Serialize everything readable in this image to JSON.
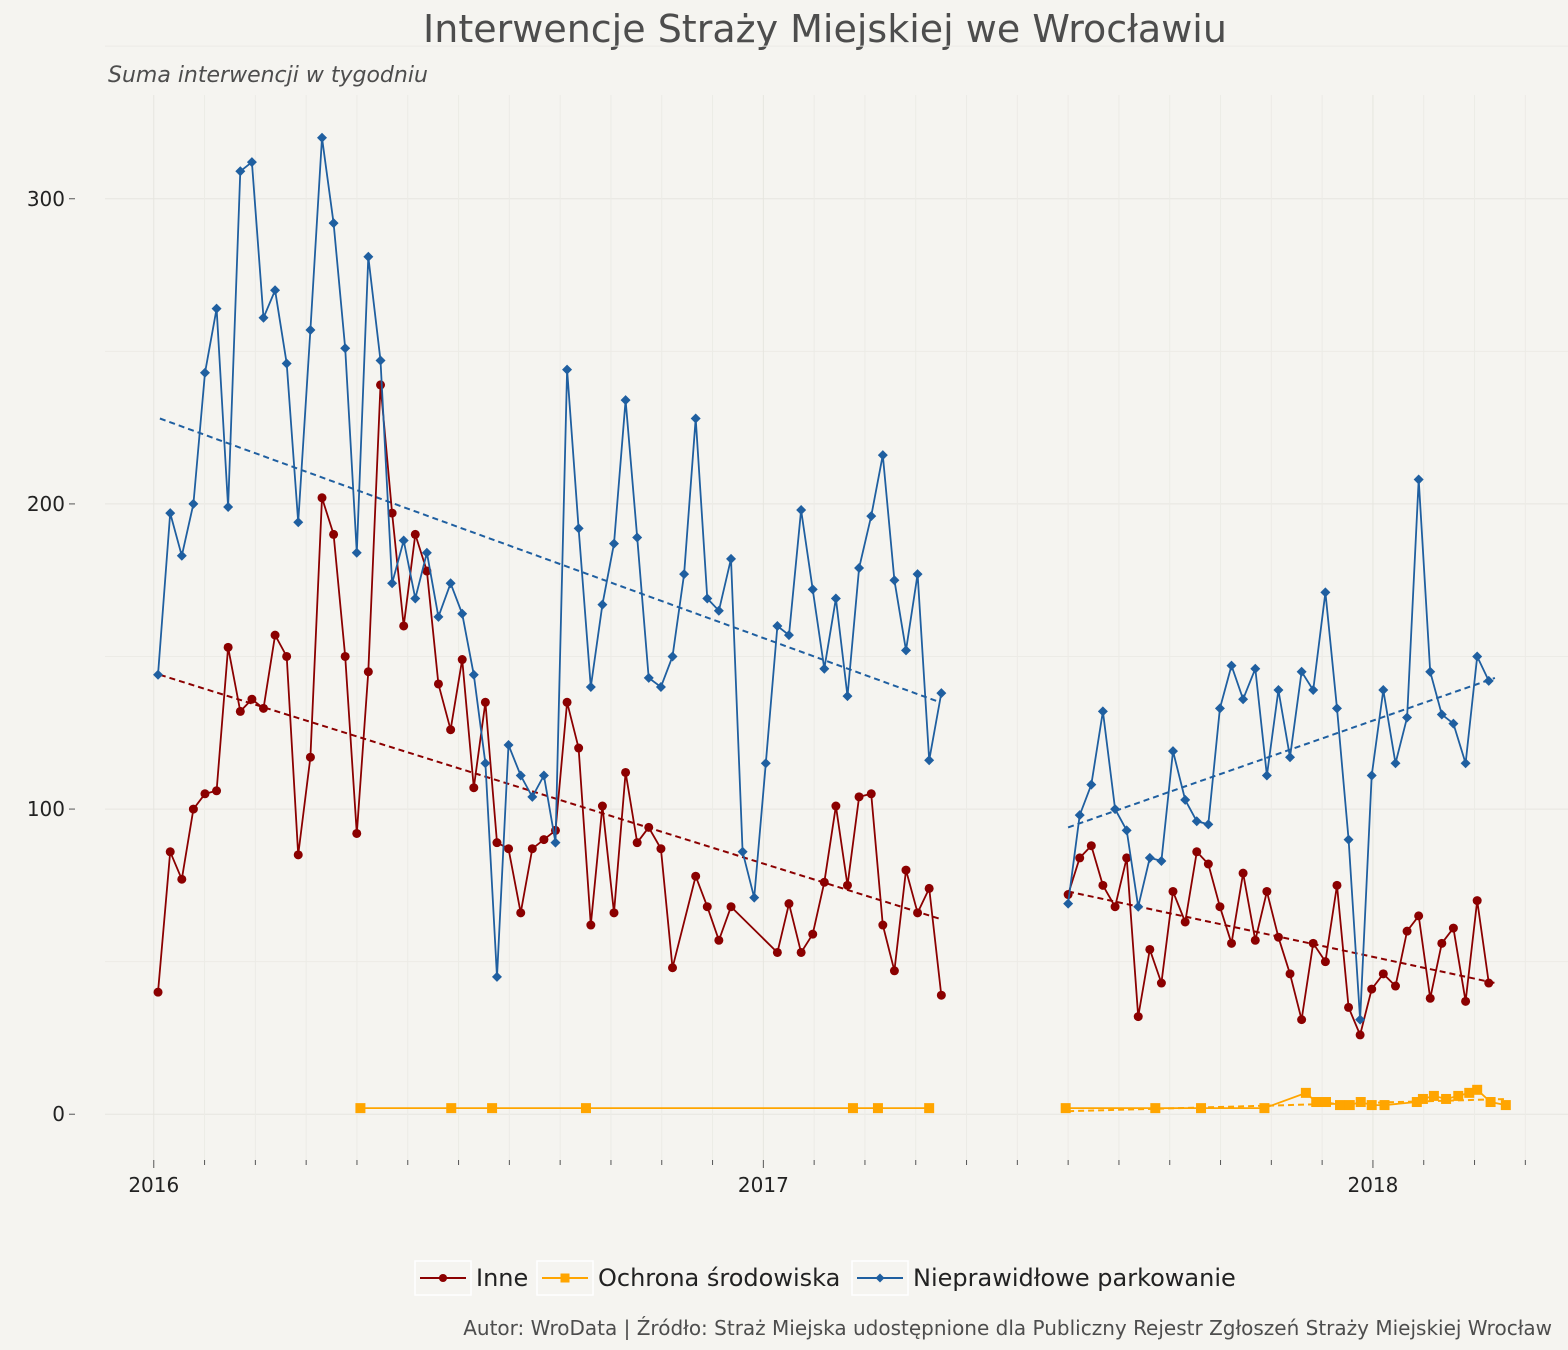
{
  "chart_data": {
    "type": "line",
    "title": "Interwencje Straży Miejskiej we Wrocławiu",
    "subtitle": "Suma interwencji w tygodniu",
    "caption": "Autor: WroData | Źródło: Straż Miejska udostępnione dla Publiczny Rejestr Zgłoszeń Straży Miejskiej Wrocław",
    "xlabel": "",
    "ylabel": "",
    "x_ticks": [
      2016,
      2017,
      2018
    ],
    "y_ticks": [
      0,
      100,
      200,
      300
    ],
    "xlim": [
      2015.92,
      2018.32
    ],
    "ylim": [
      -15,
      334
    ],
    "grid": true,
    "legend_position": "bottom",
    "series": [
      {
        "name": "Inne",
        "color": "#8b0000",
        "marker": "circle",
        "trend": [
          [
            2016.01,
            144
          ],
          [
            2017.29,
            64
          ],
          [
            2017.5,
            73
          ],
          [
            2018.2,
            43
          ]
        ],
        "segments": [
          [
            [
              2016.007,
              40
            ],
            [
              2016.027,
              86
            ],
            [
              2016.046,
              77
            ],
            [
              2016.065,
              100
            ],
            [
              2016.084,
              105
            ],
            [
              2016.103,
              106
            ],
            [
              2016.122,
              153
            ],
            [
              2016.142,
              132
            ],
            [
              2016.161,
              136
            ],
            [
              2016.18,
              133
            ],
            [
              2016.199,
              157
            ],
            [
              2016.218,
              150
            ],
            [
              2016.237,
              85
            ],
            [
              2016.257,
              117
            ],
            [
              2016.276,
              202
            ],
            [
              2016.295,
              190
            ],
            [
              2016.314,
              150
            ],
            [
              2016.333,
              92
            ],
            [
              2016.352,
              145
            ],
            [
              2016.372,
              239
            ],
            [
              2016.391,
              197
            ],
            [
              2016.41,
              160
            ],
            [
              2016.429,
              190
            ],
            [
              2016.448,
              178
            ],
            [
              2016.467,
              141
            ],
            [
              2016.487,
              126
            ],
            [
              2016.506,
              149
            ],
            [
              2016.525,
              107
            ],
            [
              2016.544,
              135
            ],
            [
              2016.563,
              89
            ],
            [
              2016.582,
              87
            ],
            [
              2016.602,
              66
            ],
            [
              2016.621,
              87
            ],
            [
              2016.64,
              90
            ],
            [
              2016.659,
              93
            ],
            [
              2016.678,
              135
            ],
            [
              2016.697,
              120
            ],
            [
              2016.717,
              62
            ],
            [
              2016.736,
              101
            ],
            [
              2016.755,
              66
            ],
            [
              2016.774,
              112
            ],
            [
              2016.793,
              89
            ],
            [
              2016.812,
              94
            ],
            [
              2016.832,
              87
            ],
            [
              2016.851,
              48
            ],
            [
              2016.889,
              78
            ],
            [
              2016.908,
              68
            ],
            [
              2016.927,
              57
            ],
            [
              2016.947,
              68
            ],
            [
              2017.023,
              53
            ],
            [
              2017.042,
              69
            ],
            [
              2017.062,
              53
            ],
            [
              2017.081,
              59
            ],
            [
              2017.1,
              76
            ],
            [
              2017.119,
              101
            ],
            [
              2017.138,
              75
            ],
            [
              2017.157,
              104
            ],
            [
              2017.177,
              105
            ],
            [
              2017.196,
              62
            ],
            [
              2017.215,
              47
            ],
            [
              2017.234,
              80
            ],
            [
              2017.253,
              66
            ],
            [
              2017.272,
              74
            ],
            [
              2017.292,
              39
            ]
          ],
          [
            [
              2017.5,
              72
            ],
            [
              2017.519,
              84
            ],
            [
              2017.538,
              88
            ],
            [
              2017.557,
              75
            ],
            [
              2017.577,
              68
            ],
            [
              2017.596,
              84
            ],
            [
              2017.615,
              32
            ],
            [
              2017.634,
              54
            ],
            [
              2017.653,
              43
            ],
            [
              2017.672,
              73
            ],
            [
              2017.692,
              63
            ],
            [
              2017.711,
              86
            ],
            [
              2017.73,
              82
            ],
            [
              2017.749,
              68
            ],
            [
              2017.768,
              56
            ],
            [
              2017.787,
              79
            ],
            [
              2017.807,
              57
            ],
            [
              2017.826,
              73
            ],
            [
              2017.845,
              58
            ],
            [
              2017.864,
              46
            ],
            [
              2017.883,
              31
            ],
            [
              2017.902,
              56
            ],
            [
              2017.922,
              50
            ],
            [
              2017.941,
              75
            ],
            [
              2017.96,
              35
            ],
            [
              2017.979,
              26
            ],
            [
              2017.998,
              41
            ],
            [
              2018.017,
              46
            ],
            [
              2018.037,
              42
            ],
            [
              2018.056,
              60
            ],
            [
              2018.075,
              65
            ],
            [
              2018.094,
              38
            ],
            [
              2018.113,
              56
            ],
            [
              2018.132,
              61
            ],
            [
              2018.152,
              37
            ],
            [
              2018.171,
              70
            ],
            [
              2018.19,
              43
            ]
          ]
        ]
      },
      {
        "name": "Ochrona środowiska",
        "color": "#ffa500",
        "marker": "square",
        "trend": [
          [
            2017.5,
            1
          ],
          [
            2018.22,
            5
          ]
        ],
        "segments": [
          [
            [
              2016.339,
              2
            ],
            [
              2016.488,
              2
            ],
            [
              2016.555,
              2
            ],
            [
              2016.709,
              2
            ],
            [
              2017.147,
              2
            ],
            [
              2017.188,
              2
            ],
            [
              2017.272,
              2
            ]
          ],
          [
            [
              2017.496,
              2
            ],
            [
              2017.643,
              2
            ],
            [
              2017.718,
              2
            ],
            [
              2017.822,
              2
            ],
            [
              2017.89,
              7
            ],
            [
              2017.907,
              4
            ],
            [
              2017.923,
              4
            ],
            [
              2017.946,
              3
            ],
            [
              2017.962,
              3
            ],
            [
              2017.98,
              4
            ],
            [
              2017.998,
              3
            ],
            [
              2018.019,
              3
            ],
            [
              2018.072,
              4
            ],
            [
              2018.082,
              5
            ],
            [
              2018.1,
              6
            ],
            [
              2018.12,
              5
            ],
            [
              2018.14,
              6
            ],
            [
              2018.158,
              7
            ],
            [
              2018.171,
              8
            ],
            [
              2018.193,
              4
            ],
            [
              2018.218,
              3
            ]
          ]
        ]
      },
      {
        "name": "Nieprawidłowe parkowanie",
        "color": "#1f5fa0",
        "marker": "diamond",
        "trend": [
          [
            2016.01,
            228
          ],
          [
            2017.29,
            135
          ],
          [
            2017.5,
            94
          ],
          [
            2018.2,
            143
          ]
        ],
        "segments": [
          [
            [
              2016.007,
              144
            ],
            [
              2016.027,
              197
            ],
            [
              2016.046,
              183
            ],
            [
              2016.065,
              200
            ],
            [
              2016.084,
              243
            ],
            [
              2016.103,
              264
            ],
            [
              2016.122,
              199
            ],
            [
              2016.142,
              309
            ],
            [
              2016.161,
              312
            ],
            [
              2016.18,
              261
            ],
            [
              2016.199,
              270
            ],
            [
              2016.218,
              246
            ],
            [
              2016.237,
              194
            ],
            [
              2016.257,
              257
            ],
            [
              2016.276,
              320
            ],
            [
              2016.295,
              292
            ],
            [
              2016.314,
              251
            ],
            [
              2016.333,
              184
            ],
            [
              2016.352,
              281
            ],
            [
              2016.372,
              247
            ],
            [
              2016.391,
              174
            ],
            [
              2016.41,
              188
            ],
            [
              2016.429,
              169
            ],
            [
              2016.448,
              184
            ],
            [
              2016.467,
              163
            ],
            [
              2016.487,
              174
            ],
            [
              2016.506,
              164
            ],
            [
              2016.525,
              144
            ],
            [
              2016.544,
              115
            ],
            [
              2016.563,
              45
            ],
            [
              2016.582,
              121
            ],
            [
              2016.602,
              111
            ],
            [
              2016.621,
              104
            ],
            [
              2016.64,
              111
            ],
            [
              2016.659,
              89
            ],
            [
              2016.678,
              244
            ],
            [
              2016.697,
              192
            ],
            [
              2016.717,
              140
            ],
            [
              2016.736,
              167
            ],
            [
              2016.755,
              187
            ],
            [
              2016.774,
              234
            ],
            [
              2016.793,
              189
            ],
            [
              2016.812,
              143
            ],
            [
              2016.832,
              140
            ],
            [
              2016.851,
              150
            ],
            [
              2016.87,
              177
            ],
            [
              2016.889,
              228
            ],
            [
              2016.908,
              169
            ],
            [
              2016.927,
              165
            ],
            [
              2016.947,
              182
            ],
            [
              2016.966,
              86
            ],
            [
              2016.985,
              71
            ],
            [
              2017.004,
              115
            ],
            [
              2017.023,
              160
            ],
            [
              2017.042,
              157
            ],
            [
              2017.062,
              198
            ],
            [
              2017.081,
              172
            ],
            [
              2017.1,
              146
            ],
            [
              2017.119,
              169
            ],
            [
              2017.138,
              137
            ],
            [
              2017.157,
              179
            ],
            [
              2017.177,
              196
            ],
            [
              2017.196,
              216
            ],
            [
              2017.215,
              175
            ],
            [
              2017.234,
              152
            ],
            [
              2017.253,
              177
            ],
            [
              2017.272,
              116
            ],
            [
              2017.292,
              138
            ]
          ],
          [
            [
              2017.5,
              69
            ],
            [
              2017.519,
              98
            ],
            [
              2017.538,
              108
            ],
            [
              2017.557,
              132
            ],
            [
              2017.577,
              100
            ],
            [
              2017.596,
              93
            ],
            [
              2017.615,
              68
            ],
            [
              2017.634,
              84
            ],
            [
              2017.653,
              83
            ],
            [
              2017.672,
              119
            ],
            [
              2017.692,
              103
            ],
            [
              2017.711,
              96
            ],
            [
              2017.73,
              95
            ],
            [
              2017.749,
              133
            ],
            [
              2017.768,
              147
            ],
            [
              2017.787,
              136
            ],
            [
              2017.807,
              146
            ],
            [
              2017.826,
              111
            ],
            [
              2017.845,
              139
            ],
            [
              2017.864,
              117
            ],
            [
              2017.883,
              145
            ],
            [
              2017.902,
              139
            ],
            [
              2017.922,
              171
            ],
            [
              2017.941,
              133
            ],
            [
              2017.96,
              90
            ],
            [
              2017.979,
              31
            ],
            [
              2017.998,
              111
            ],
            [
              2018.017,
              139
            ],
            [
              2018.037,
              115
            ],
            [
              2018.056,
              130
            ],
            [
              2018.075,
              208
            ],
            [
              2018.094,
              145
            ],
            [
              2018.113,
              131
            ],
            [
              2018.132,
              128
            ],
            [
              2018.152,
              115
            ],
            [
              2018.171,
              150
            ],
            [
              2018.19,
              142
            ]
          ]
        ]
      }
    ]
  }
}
